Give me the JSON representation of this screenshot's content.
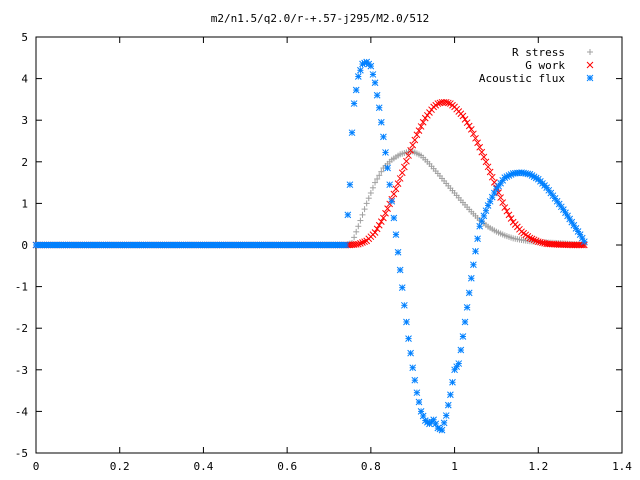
{
  "chart_data": {
    "type": "scatter",
    "title": "m2/n1.5/q2.0/r-+.57-j295/M2.0/512",
    "xlim": [
      0,
      1.4
    ],
    "ylim": [
      -5,
      5
    ],
    "x_ticks": [
      "0",
      "0.2",
      "0.4",
      "0.6",
      "0.8",
      "1",
      "1.2",
      "1.4"
    ],
    "y_ticks": [
      "5",
      "4",
      "3",
      "2",
      "1",
      "0",
      "-1",
      "-2",
      "-3",
      "-4",
      "-5"
    ],
    "legend_position": "top-right",
    "grid": false,
    "series": [
      {
        "name": "R stress",
        "marker": "plus",
        "color": "#a0a0a0",
        "points": [
          [
            0,
            0
          ],
          [
            0.2,
            0
          ],
          [
            0.4,
            0
          ],
          [
            0.6,
            0
          ],
          [
            0.74,
            0
          ],
          [
            0.755,
            0.05
          ],
          [
            0.77,
            0.45
          ],
          [
            0.79,
            1.0
          ],
          [
            0.81,
            1.5
          ],
          [
            0.83,
            1.85
          ],
          [
            0.85,
            2.05
          ],
          [
            0.87,
            2.18
          ],
          [
            0.89,
            2.24
          ],
          [
            0.9,
            2.25
          ],
          [
            0.92,
            2.15
          ],
          [
            0.94,
            1.95
          ],
          [
            0.96,
            1.72
          ],
          [
            0.98,
            1.48
          ],
          [
            1.0,
            1.25
          ],
          [
            1.02,
            1.02
          ],
          [
            1.04,
            0.8
          ],
          [
            1.06,
            0.6
          ],
          [
            1.08,
            0.44
          ],
          [
            1.1,
            0.32
          ],
          [
            1.12,
            0.23
          ],
          [
            1.14,
            0.16
          ],
          [
            1.16,
            0.12
          ],
          [
            1.18,
            0.09
          ],
          [
            1.2,
            0.07
          ],
          [
            1.22,
            0.06
          ],
          [
            1.24,
            0.05
          ],
          [
            1.27,
            0.03
          ],
          [
            1.3,
            0.01
          ],
          [
            1.31,
            0
          ]
        ]
      },
      {
        "name": "G work",
        "marker": "cross",
        "color": "#ff0000",
        "points": [
          [
            0,
            0
          ],
          [
            0.2,
            0
          ],
          [
            0.4,
            0
          ],
          [
            0.6,
            0
          ],
          [
            0.75,
            0
          ],
          [
            0.77,
            0.02
          ],
          [
            0.79,
            0.1
          ],
          [
            0.81,
            0.3
          ],
          [
            0.83,
            0.65
          ],
          [
            0.85,
            1.1
          ],
          [
            0.87,
            1.6
          ],
          [
            0.89,
            2.15
          ],
          [
            0.91,
            2.65
          ],
          [
            0.93,
            3.05
          ],
          [
            0.95,
            3.32
          ],
          [
            0.96,
            3.4
          ],
          [
            0.97,
            3.43
          ],
          [
            0.98,
            3.43
          ],
          [
            0.99,
            3.4
          ],
          [
            1.0,
            3.32
          ],
          [
            1.02,
            3.1
          ],
          [
            1.04,
            2.78
          ],
          [
            1.06,
            2.35
          ],
          [
            1.08,
            1.88
          ],
          [
            1.1,
            1.38
          ],
          [
            1.12,
            0.9
          ],
          [
            1.14,
            0.55
          ],
          [
            1.16,
            0.32
          ],
          [
            1.18,
            0.17
          ],
          [
            1.2,
            0.08
          ],
          [
            1.22,
            0.03
          ],
          [
            1.25,
            0.01
          ],
          [
            1.28,
            0
          ],
          [
            1.31,
            0
          ]
        ]
      },
      {
        "name": "Acoustic flux",
        "marker": "star",
        "color": "#0080ff",
        "points": [
          [
            0,
            0
          ],
          [
            0.1,
            0
          ],
          [
            0.2,
            0
          ],
          [
            0.3,
            0
          ],
          [
            0.4,
            0
          ],
          [
            0.5,
            0
          ],
          [
            0.6,
            0
          ],
          [
            0.7,
            0
          ],
          [
            0.74,
            0
          ],
          [
            0.75,
            1.45
          ],
          [
            0.755,
            2.7
          ],
          [
            0.76,
            3.4
          ],
          [
            0.77,
            4.05
          ],
          [
            0.78,
            4.35
          ],
          [
            0.79,
            4.4
          ],
          [
            0.8,
            4.3
          ],
          [
            0.81,
            3.9
          ],
          [
            0.82,
            3.3
          ],
          [
            0.83,
            2.6
          ],
          [
            0.84,
            1.85
          ],
          [
            0.85,
            1.05
          ],
          [
            0.86,
            0.25
          ],
          [
            0.87,
            -0.6
          ],
          [
            0.88,
            -1.45
          ],
          [
            0.89,
            -2.25
          ],
          [
            0.9,
            -2.95
          ],
          [
            0.91,
            -3.55
          ],
          [
            0.92,
            -4.0
          ],
          [
            0.93,
            -4.22
          ],
          [
            0.94,
            -4.3
          ],
          [
            0.95,
            -4.2
          ],
          [
            0.96,
            -4.4
          ],
          [
            0.97,
            -4.45
          ],
          [
            0.98,
            -4.1
          ],
          [
            0.99,
            -3.6
          ],
          [
            1.0,
            -3.0
          ],
          [
            1.01,
            -2.85
          ],
          [
            1.02,
            -2.2
          ],
          [
            1.03,
            -1.5
          ],
          [
            1.04,
            -0.8
          ],
          [
            1.05,
            -0.15
          ],
          [
            1.06,
            0.45
          ],
          [
            1.08,
            0.95
          ],
          [
            1.1,
            1.35
          ],
          [
            1.12,
            1.62
          ],
          [
            1.14,
            1.72
          ],
          [
            1.16,
            1.74
          ],
          [
            1.18,
            1.7
          ],
          [
            1.2,
            1.58
          ],
          [
            1.22,
            1.38
          ],
          [
            1.24,
            1.12
          ],
          [
            1.26,
            0.85
          ],
          [
            1.28,
            0.55
          ],
          [
            1.3,
            0.25
          ],
          [
            1.31,
            0.08
          ]
        ]
      }
    ]
  }
}
